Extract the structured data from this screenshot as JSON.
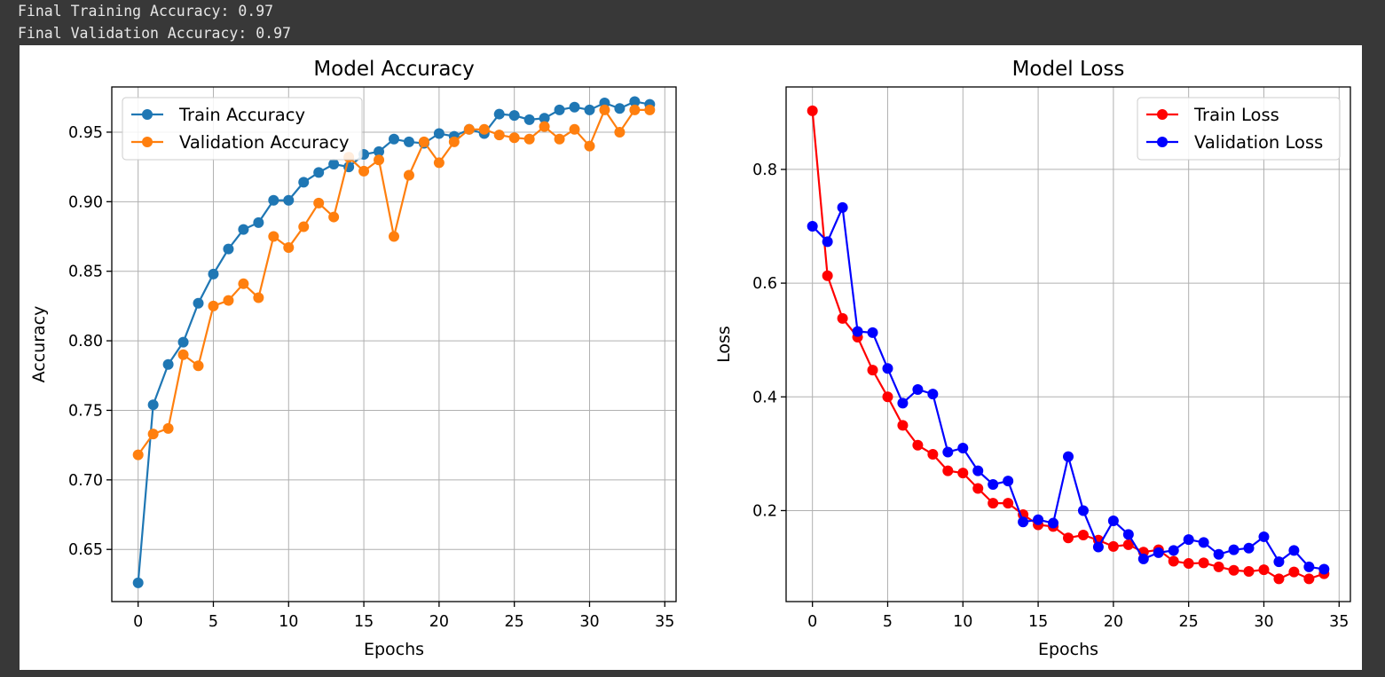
{
  "output": {
    "line1": "Final Training Accuracy: 0.97",
    "line2": "Final Validation Accuracy: 0.97"
  },
  "chart_data": [
    {
      "type": "line",
      "title": "Model Accuracy",
      "xlabel": "Epochs",
      "ylabel": "Accuracy",
      "xlim": [
        -1.75,
        35.75
      ],
      "ylim": [
        0.6125,
        0.9825
      ],
      "xticks": [
        0,
        5,
        10,
        15,
        20,
        25,
        30,
        35
      ],
      "yticks": [
        0.65,
        0.7,
        0.75,
        0.8,
        0.85,
        0.9,
        0.95
      ],
      "ytick_labels": [
        "0.65",
        "0.70",
        "0.75",
        "0.80",
        "0.85",
        "0.90",
        "0.95"
      ],
      "grid": true,
      "legend_position": "top-left",
      "x": [
        0,
        1,
        2,
        3,
        4,
        5,
        6,
        7,
        8,
        9,
        10,
        11,
        12,
        13,
        14,
        15,
        16,
        17,
        18,
        19,
        20,
        21,
        22,
        23,
        24,
        25,
        26,
        27,
        28,
        29,
        30,
        31,
        32,
        33,
        34
      ],
      "series": [
        {
          "name": "Train Accuracy",
          "color": "#1f77b4",
          "values": [
            0.626,
            0.754,
            0.783,
            0.799,
            0.827,
            0.848,
            0.866,
            0.88,
            0.885,
            0.901,
            0.901,
            0.914,
            0.921,
            0.927,
            0.925,
            0.934,
            0.936,
            0.945,
            0.943,
            0.942,
            0.949,
            0.947,
            0.952,
            0.949,
            0.963,
            0.962,
            0.959,
            0.96,
            0.966,
            0.968,
            0.966,
            0.971,
            0.967,
            0.972,
            0.97
          ]
        },
        {
          "name": "Validation Accuracy",
          "color": "#ff7f0e",
          "values": [
            0.718,
            0.733,
            0.737,
            0.79,
            0.782,
            0.825,
            0.829,
            0.841,
            0.831,
            0.875,
            0.867,
            0.882,
            0.899,
            0.889,
            0.932,
            0.922,
            0.93,
            0.875,
            0.919,
            0.943,
            0.928,
            0.943,
            0.952,
            0.952,
            0.948,
            0.946,
            0.945,
            0.954,
            0.945,
            0.952,
            0.94,
            0.966,
            0.95,
            0.966,
            0.966
          ]
        }
      ]
    },
    {
      "type": "line",
      "title": "Model Loss",
      "xlabel": "Epochs",
      "ylabel": "Loss",
      "xlim": [
        -1.75,
        35.75
      ],
      "ylim": [
        0.04,
        0.945
      ],
      "xticks": [
        0,
        5,
        10,
        15,
        20,
        25,
        30,
        35
      ],
      "yticks": [
        0.2,
        0.4,
        0.6,
        0.8
      ],
      "ytick_labels": [
        "0.2",
        "0.4",
        "0.6",
        "0.8"
      ],
      "grid": true,
      "legend_position": "top-right",
      "x": [
        0,
        1,
        2,
        3,
        4,
        5,
        6,
        7,
        8,
        9,
        10,
        11,
        12,
        13,
        14,
        15,
        16,
        17,
        18,
        19,
        20,
        21,
        22,
        23,
        24,
        25,
        26,
        27,
        28,
        29,
        30,
        31,
        32,
        33,
        34
      ],
      "series": [
        {
          "name": "Train Loss",
          "color": "#ff0000",
          "values": [
            0.903,
            0.613,
            0.538,
            0.505,
            0.447,
            0.4,
            0.35,
            0.315,
            0.299,
            0.27,
            0.266,
            0.239,
            0.213,
            0.213,
            0.193,
            0.175,
            0.172,
            0.152,
            0.157,
            0.148,
            0.137,
            0.14,
            0.127,
            0.131,
            0.111,
            0.107,
            0.108,
            0.101,
            0.095,
            0.093,
            0.096,
            0.08,
            0.092,
            0.08,
            0.089
          ]
        },
        {
          "name": "Validation Loss",
          "color": "#0000ff",
          "values": [
            0.7,
            0.673,
            0.733,
            0.515,
            0.513,
            0.45,
            0.389,
            0.413,
            0.405,
            0.303,
            0.31,
            0.27,
            0.246,
            0.252,
            0.18,
            0.184,
            0.178,
            0.295,
            0.2,
            0.136,
            0.182,
            0.158,
            0.115,
            0.126,
            0.13,
            0.149,
            0.144,
            0.123,
            0.131,
            0.134,
            0.154,
            0.11,
            0.13,
            0.101,
            0.097
          ]
        }
      ]
    }
  ]
}
